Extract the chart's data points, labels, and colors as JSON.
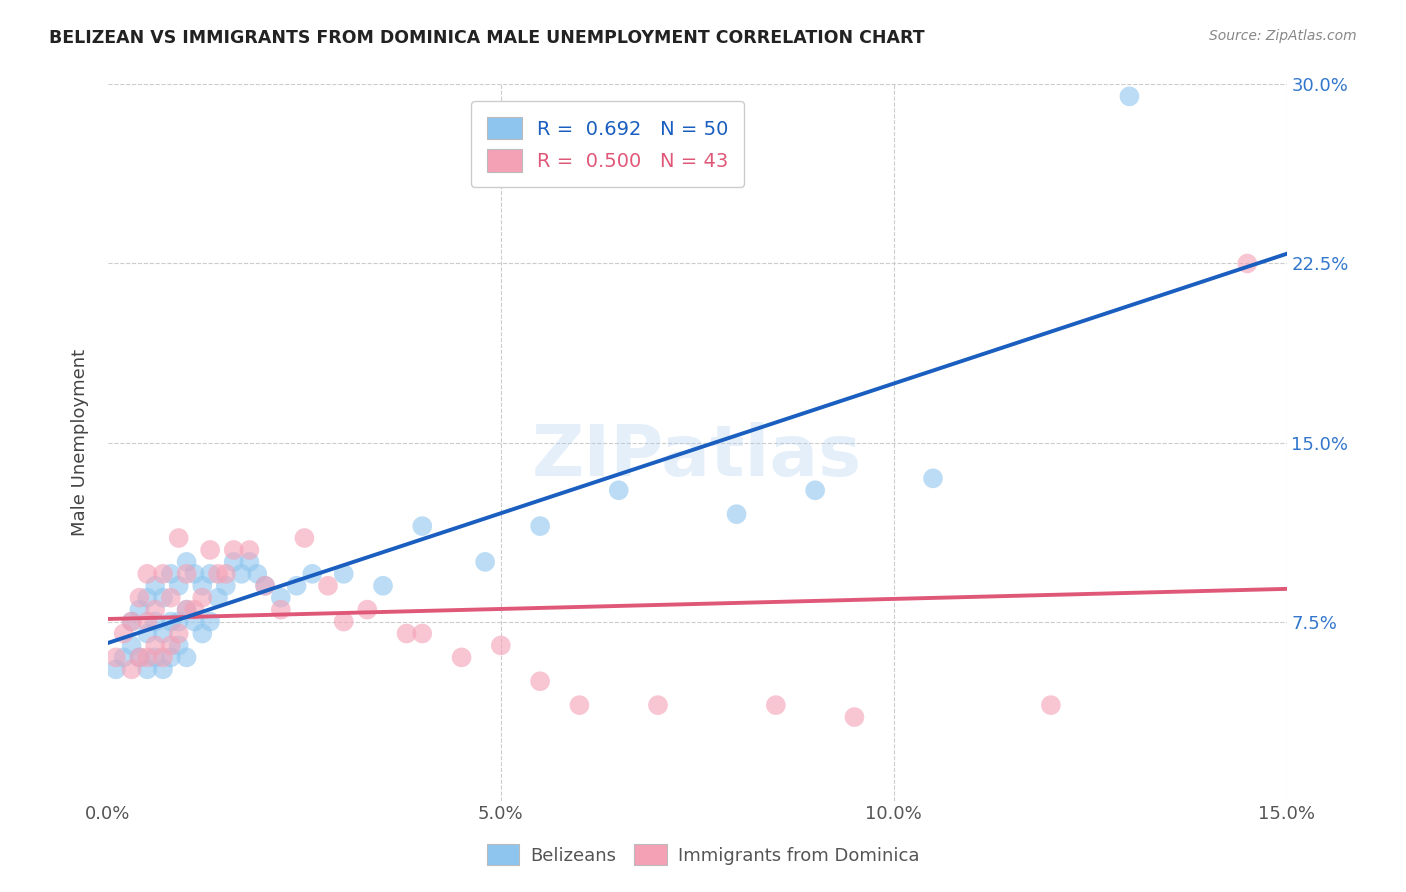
{
  "title": "BELIZEAN VS IMMIGRANTS FROM DOMINICA MALE UNEMPLOYMENT CORRELATION CHART",
  "source": "Source: ZipAtlas.com",
  "ylabel": "Male Unemployment",
  "xlim": [
    0.0,
    0.15
  ],
  "ylim": [
    0.0,
    0.3
  ],
  "xtick_pos": [
    0.0,
    0.05,
    0.1,
    0.15
  ],
  "xtick_labels": [
    "0.0%",
    "5.0%",
    "10.0%",
    "15.0%"
  ],
  "ytick_pos": [
    0.0,
    0.075,
    0.15,
    0.225,
    0.3
  ],
  "ytick_labels": [
    "",
    "7.5%",
    "15.0%",
    "22.5%",
    "30.0%"
  ],
  "gridline_x": [
    0.05,
    0.1,
    0.15
  ],
  "gridline_y": [
    0.075,
    0.15,
    0.225,
    0.3
  ],
  "belizean_color": "#8EC5EE",
  "dominica_color": "#F4A0B5",
  "belizean_line_color": "#1A5EBF",
  "dominica_line_color": "#E05878",
  "watermark": "ZIPatlas",
  "background_color": "#ffffff",
  "belizean_x": [
    0.001,
    0.002,
    0.003,
    0.003,
    0.004,
    0.004,
    0.005,
    0.005,
    0.005,
    0.006,
    0.006,
    0.006,
    0.007,
    0.007,
    0.007,
    0.008,
    0.008,
    0.008,
    0.009,
    0.009,
    0.009,
    0.01,
    0.01,
    0.01,
    0.011,
    0.011,
    0.012,
    0.012,
    0.013,
    0.013,
    0.014,
    0.015,
    0.016,
    0.017,
    0.018,
    0.019,
    0.02,
    0.022,
    0.024,
    0.026,
    0.03,
    0.035,
    0.04,
    0.048,
    0.055,
    0.065,
    0.08,
    0.09,
    0.105,
    0.13
  ],
  "belizean_y": [
    0.055,
    0.06,
    0.065,
    0.075,
    0.06,
    0.08,
    0.055,
    0.07,
    0.085,
    0.06,
    0.075,
    0.09,
    0.055,
    0.07,
    0.085,
    0.06,
    0.075,
    0.095,
    0.065,
    0.075,
    0.09,
    0.06,
    0.08,
    0.1,
    0.075,
    0.095,
    0.07,
    0.09,
    0.075,
    0.095,
    0.085,
    0.09,
    0.1,
    0.095,
    0.1,
    0.095,
    0.09,
    0.085,
    0.09,
    0.095,
    0.095,
    0.09,
    0.115,
    0.1,
    0.115,
    0.13,
    0.12,
    0.13,
    0.135,
    0.295
  ],
  "dominica_x": [
    0.001,
    0.002,
    0.003,
    0.003,
    0.004,
    0.004,
    0.005,
    0.005,
    0.005,
    0.006,
    0.006,
    0.007,
    0.007,
    0.008,
    0.008,
    0.009,
    0.009,
    0.01,
    0.01,
    0.011,
    0.012,
    0.013,
    0.014,
    0.015,
    0.016,
    0.018,
    0.02,
    0.022,
    0.025,
    0.028,
    0.03,
    0.033,
    0.038,
    0.04,
    0.045,
    0.05,
    0.055,
    0.06,
    0.07,
    0.085,
    0.095,
    0.12,
    0.145
  ],
  "dominica_y": [
    0.06,
    0.07,
    0.055,
    0.075,
    0.06,
    0.085,
    0.06,
    0.075,
    0.095,
    0.065,
    0.08,
    0.06,
    0.095,
    0.065,
    0.085,
    0.07,
    0.11,
    0.08,
    0.095,
    0.08,
    0.085,
    0.105,
    0.095,
    0.095,
    0.105,
    0.105,
    0.09,
    0.08,
    0.11,
    0.09,
    0.075,
    0.08,
    0.07,
    0.07,
    0.06,
    0.065,
    0.05,
    0.04,
    0.04,
    0.04,
    0.035,
    0.04,
    0.225
  ]
}
